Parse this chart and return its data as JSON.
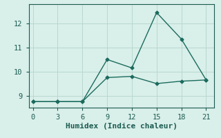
{
  "title": "",
  "xlabel": "Humidex (Indice chaleur)",
  "ylabel": "",
  "background_color": "#d9efe9",
  "line_color": "#1a6b5e",
  "grid_color": "#b8d8d0",
  "line1_x": [
    0,
    3,
    6,
    9,
    12,
    15,
    18,
    21
  ],
  "line1_y": [
    8.75,
    8.75,
    8.75,
    9.75,
    9.8,
    9.5,
    9.6,
    9.65
  ],
  "line2_x": [
    0,
    3,
    6,
    9,
    12,
    15,
    18,
    21
  ],
  "line2_y": [
    8.75,
    8.75,
    8.75,
    10.5,
    10.15,
    12.45,
    11.35,
    9.65
  ],
  "xlim": [
    -0.5,
    22
  ],
  "ylim": [
    8.5,
    12.8
  ],
  "xticks": [
    0,
    3,
    6,
    9,
    12,
    15,
    18,
    21
  ],
  "yticks": [
    9,
    10,
    11,
    12
  ],
  "font_color": "#1a5a50",
  "marker": "D",
  "markersize": 2.5,
  "linewidth": 1.0,
  "tick_fontsize": 7.5,
  "xlabel_fontsize": 8
}
